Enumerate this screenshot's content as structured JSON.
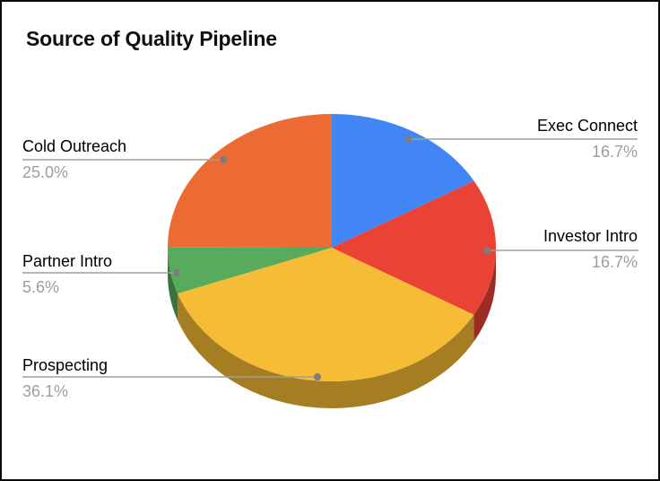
{
  "title": "Source of Quality Pipeline",
  "chart_data": {
    "type": "pie",
    "style": "3d",
    "title": "Source of Quality Pipeline",
    "start_angle_deg": 0,
    "direction": "clockwise",
    "segments": [
      {
        "label": "Exec Connect",
        "pct": 16.7,
        "pct_text": "16.7%",
        "color": "#4285F4"
      },
      {
        "label": "Investor Intro",
        "pct": 16.7,
        "pct_text": "16.7%",
        "color": "#EA4335"
      },
      {
        "label": "Prospecting",
        "pct": 36.1,
        "pct_text": "36.1%",
        "color": "#F6BC35"
      },
      {
        "label": "Partner Intro",
        "pct": 5.6,
        "pct_text": "5.6%",
        "color": "#58AB5C"
      },
      {
        "label": "Cold Outreach",
        "pct": 25.0,
        "pct_text": "25.0%",
        "color": "#EC6B34"
      }
    ],
    "label_text_color": "#000000",
    "pct_text_color": "#9E9E9E",
    "leader_line_color": "#9E9E9E",
    "background": "#FFFFFF"
  }
}
